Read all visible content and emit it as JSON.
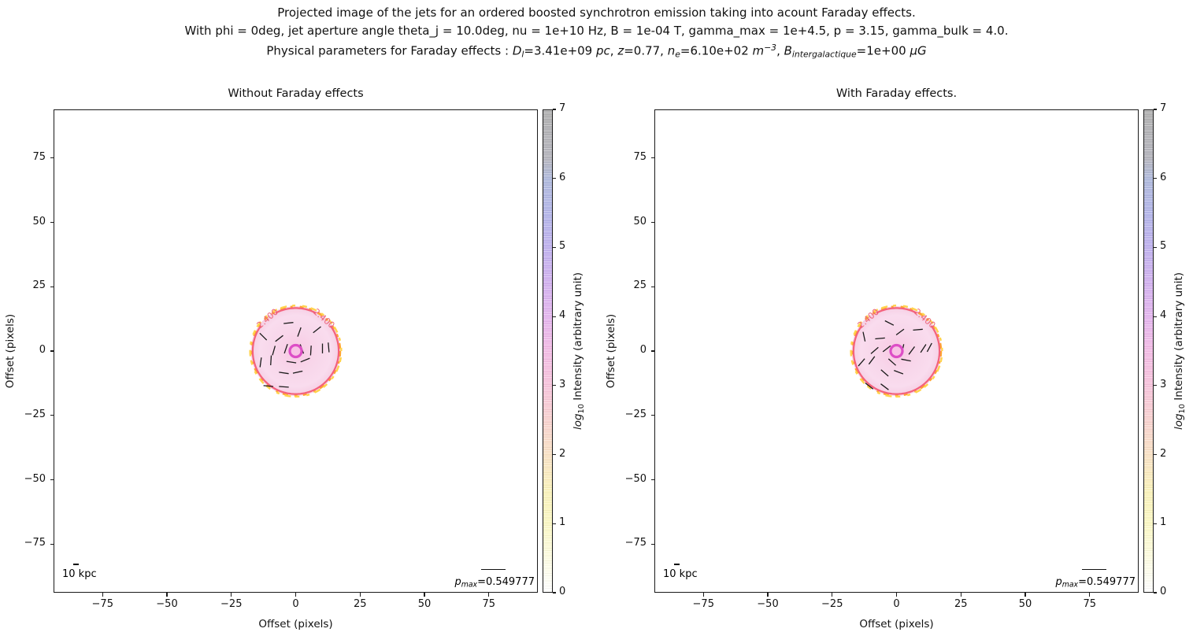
{
  "suptitle": {
    "line1": "Projected image of the jets for an ordered boosted synchrotron emission taking into acount Faraday effects.",
    "line2": "With phi = 0deg, jet aperture angle theta_j = 10.0deg, nu = 1e+10 Hz, B = 1e-04 T, gamma_max = 1e+4.5, p = 3.15, gamma_bulk = 4.0.",
    "line3_segments": [
      {
        "t": "Physical parameters for Faraday effects : "
      },
      {
        "t": "D",
        "i": true
      },
      {
        "t": "l",
        "i": true,
        "sub": true
      },
      {
        "t": "=3.41e+09 "
      },
      {
        "t": "pc",
        "i": true
      },
      {
        "t": ", "
      },
      {
        "t": "z",
        "i": true
      },
      {
        "t": "=0.77, "
      },
      {
        "t": "n",
        "i": true
      },
      {
        "t": "e",
        "i": true,
        "sub": true
      },
      {
        "t": "=6.10e+02 "
      },
      {
        "t": "m",
        "i": true
      },
      {
        "t": "−3",
        "i": true,
        "sup": true
      },
      {
        "t": ", "
      },
      {
        "t": "B",
        "i": true
      },
      {
        "t": "intergalactique",
        "i": true,
        "sub": true
      },
      {
        "t": "=1e+00 "
      },
      {
        "t": "μG",
        "i": true
      }
    ]
  },
  "colors": {
    "background": "#ffffff",
    "axes_edge": "#1a1a1a",
    "text": "#111111",
    "disk_center": "#f7c9e3",
    "disk_mid": "#f8d6ea",
    "disk_outer": "#f9dcee",
    "disk_edge": "#f5cde3",
    "red_contour": "#f4617b",
    "contour_label": "#ec6177",
    "orange_contour": "#ffa432",
    "yellow_contour": "#ffd44e",
    "marker_stroke": "#dd4ec6",
    "marker_fill": "#f8c2e5",
    "pol_tick": "#1a1a1a"
  },
  "chart_data": [
    {
      "type": "heatmap",
      "title": "Without Faraday effects",
      "xlabel": "Offset (pixels)",
      "ylabel": "Offset (pixels)",
      "xlim": [
        -94,
        94
      ],
      "ylim": [
        -94,
        94
      ],
      "xticks": [
        -75,
        -50,
        -25,
        0,
        25,
        50,
        75
      ],
      "yticks": [
        75,
        50,
        25,
        0,
        -25,
        -50,
        -75
      ],
      "grid": false,
      "colorbar": {
        "label_segments": [
          {
            "t": "log",
            "i": true
          },
          {
            "t": "10",
            "sub": true
          },
          {
            "t": " Intensity (arbitrary unit)"
          }
        ],
        "range": [
          0,
          7
        ],
        "ticks": [
          0,
          1,
          2,
          3,
          4,
          5,
          6,
          7
        ],
        "gradient": [
          {
            "p": 0.0,
            "c": "#ffffff"
          },
          {
            "p": 0.07,
            "c": "#fdfce2"
          },
          {
            "p": 0.143,
            "c": "#fbf8c5"
          },
          {
            "p": 0.21,
            "c": "#faf2bb"
          },
          {
            "p": 0.286,
            "c": "#f9e2c6"
          },
          {
            "p": 0.357,
            "c": "#f8d2d0"
          },
          {
            "p": 0.429,
            "c": "#f7c4dc"
          },
          {
            "p": 0.5,
            "c": "#f3bce5"
          },
          {
            "p": 0.571,
            "c": "#e4b6ee"
          },
          {
            "p": 0.643,
            "c": "#d2b2ef"
          },
          {
            "p": 0.714,
            "c": "#c0b2ee"
          },
          {
            "p": 0.786,
            "c": "#b4b6e9"
          },
          {
            "p": 0.857,
            "c": "#b0badd"
          },
          {
            "p": 0.9,
            "c": "#b5b5bd"
          },
          {
            "p": 1.0,
            "c": "#b1b1b1"
          }
        ]
      },
      "scalebar": {
        "label": "10 kpc"
      },
      "pmax_value": 0.549777,
      "pmax_segments": [
        {
          "t": "p",
          "i": true
        },
        {
          "t": "max",
          "i": true,
          "sub": true
        },
        {
          "t": "=0.549777"
        }
      ],
      "blob": {
        "center": [
          0,
          0
        ],
        "disk_radius": 17.4,
        "red_contour": {
          "level": 2.4,
          "label": "2.400",
          "radius": 16.7,
          "label_angles_deg": [
            131,
            49
          ]
        },
        "outer_contour_radii": [
          17.2,
          17.7
        ],
        "marker_radius_units": 2.3
      },
      "tick_length_units": 3.8,
      "polarization_ticks": [
        [
          -2.8,
          10.9,
          6
        ],
        [
          1.4,
          7.4,
          70
        ],
        [
          8.3,
          8.3,
          38
        ],
        [
          10.4,
          1.0,
          90
        ],
        [
          12.8,
          1.4,
          95
        ],
        [
          -13.6,
          -4.4,
          82
        ],
        [
          -9.6,
          -3.6,
          86
        ],
        [
          -8.5,
          0.2,
          74
        ],
        [
          -6.4,
          4.9,
          38
        ],
        [
          -3.8,
          0.9,
          71
        ],
        [
          2.4,
          0.8,
          110
        ],
        [
          5.9,
          0.2,
          86
        ],
        [
          -1.7,
          -4.3,
          171
        ],
        [
          3.7,
          -3.5,
          22
        ],
        [
          -4.6,
          -8.5,
          172
        ],
        [
          0.8,
          -8.2,
          12
        ],
        [
          -10.6,
          -13.6,
          175
        ],
        [
          -4.6,
          -13.9,
          176
        ],
        [
          -12.6,
          5.6,
          135
        ]
      ]
    },
    {
      "type": "heatmap",
      "title": "With Faraday effects.",
      "xlabel": "Offset (pixels)",
      "ylabel": "Offset (pixels)",
      "xlim": [
        -94,
        94
      ],
      "ylim": [
        -94,
        94
      ],
      "xticks": [
        -75,
        -50,
        -25,
        0,
        25,
        50,
        75
      ],
      "yticks": [
        75,
        50,
        25,
        0,
        -25,
        -50,
        -75
      ],
      "grid": false,
      "colorbar": {
        "label_segments": [
          {
            "t": "log",
            "i": true
          },
          {
            "t": "10",
            "sub": true
          },
          {
            "t": " Intensity (arbitrary unit)"
          }
        ],
        "range": [
          0,
          7
        ],
        "ticks": [
          0,
          1,
          2,
          3,
          4,
          5,
          6,
          7
        ],
        "gradient": [
          {
            "p": 0.0,
            "c": "#ffffff"
          },
          {
            "p": 0.07,
            "c": "#fdfce2"
          },
          {
            "p": 0.143,
            "c": "#fbf8c5"
          },
          {
            "p": 0.21,
            "c": "#faf2bb"
          },
          {
            "p": 0.286,
            "c": "#f9e2c6"
          },
          {
            "p": 0.357,
            "c": "#f8d2d0"
          },
          {
            "p": 0.429,
            "c": "#f7c4dc"
          },
          {
            "p": 0.5,
            "c": "#f3bce5"
          },
          {
            "p": 0.571,
            "c": "#e4b6ee"
          },
          {
            "p": 0.643,
            "c": "#d2b2ef"
          },
          {
            "p": 0.714,
            "c": "#c0b2ee"
          },
          {
            "p": 0.786,
            "c": "#b4b6e9"
          },
          {
            "p": 0.857,
            "c": "#b0badd"
          },
          {
            "p": 0.9,
            "c": "#b5b5bd"
          },
          {
            "p": 1.0,
            "c": "#b1b1b1"
          }
        ]
      },
      "scalebar": {
        "label": "10 kpc"
      },
      "pmax_value": 0.549777,
      "pmax_segments": [
        {
          "t": "p",
          "i": true
        },
        {
          "t": "max",
          "i": true,
          "sub": true
        },
        {
          "t": "=0.549777"
        }
      ],
      "blob": {
        "center": [
          0,
          0
        ],
        "disk_radius": 17.4,
        "red_contour": {
          "level": 2.4,
          "label": "2.400",
          "radius": 16.7,
          "label_angles_deg": [
            131,
            49
          ]
        },
        "outer_contour_radii": [
          17.2,
          17.7
        ],
        "marker_radius_units": 2.3
      },
      "tick_length_units": 3.8,
      "polarization_ticks": [
        [
          -2.8,
          10.9,
          153
        ],
        [
          1.4,
          7.4,
          37
        ],
        [
          8.3,
          8.3,
          5
        ],
        [
          10.4,
          1.0,
          57
        ],
        [
          12.8,
          1.4,
          62
        ],
        [
          -13.6,
          -4.4,
          49
        ],
        [
          -9.6,
          -3.6,
          53
        ],
        [
          -8.5,
          0.2,
          41
        ],
        [
          -6.4,
          4.9,
          5
        ],
        [
          -3.8,
          0.9,
          38
        ],
        [
          2.4,
          0.8,
          77
        ],
        [
          5.9,
          0.2,
          53
        ],
        [
          -1.7,
          -4.3,
          138
        ],
        [
          3.7,
          -3.5,
          169
        ],
        [
          -4.6,
          -8.5,
          139
        ],
        [
          0.8,
          -8.2,
          159
        ],
        [
          -10.6,
          -13.6,
          142
        ],
        [
          -4.6,
          -13.9,
          143
        ],
        [
          -12.6,
          5.6,
          102
        ]
      ]
    }
  ]
}
